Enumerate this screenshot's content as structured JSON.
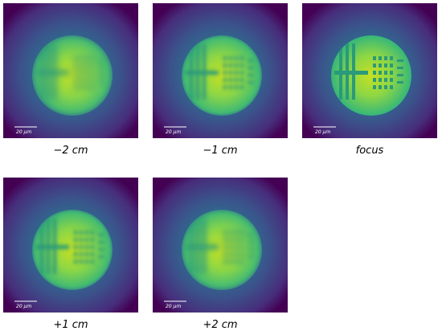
{
  "panels": [
    {
      "scale_bar": "20 μm",
      "caption": "−2 cm"
    },
    {
      "scale_bar": "20 μm",
      "caption": "−1 cm"
    },
    {
      "scale_bar": "20 μm",
      "caption": "focus"
    },
    {
      "scale_bar": "20 μm",
      "caption": "+1 cm"
    },
    {
      "scale_bar": "20 μm",
      "caption": "+2 cm"
    }
  ]
}
